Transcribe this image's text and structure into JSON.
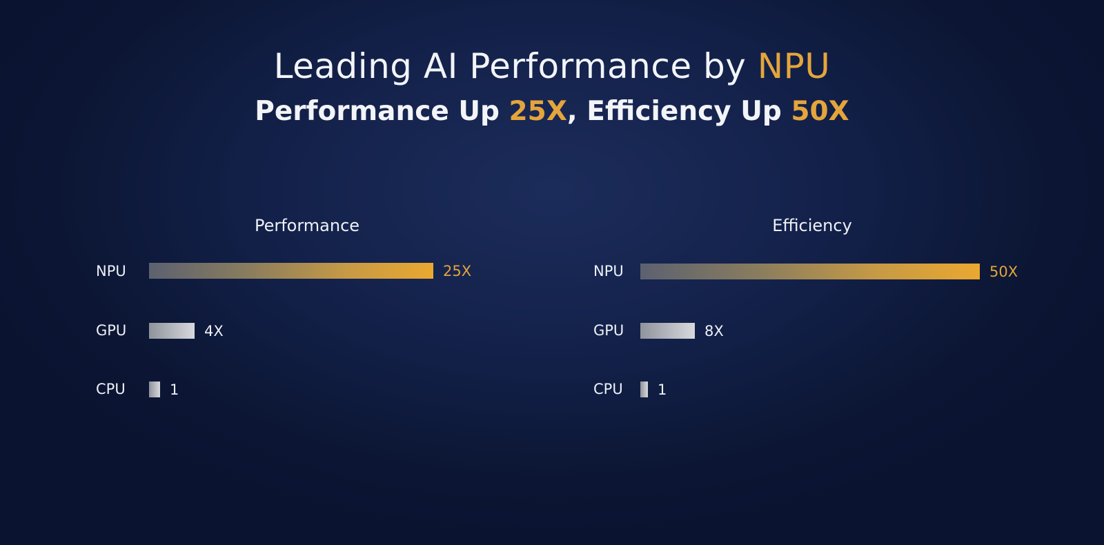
{
  "header": {
    "title_prefix": "Leading AI Performance by ",
    "title_accent": "NPU",
    "subtitle_part1": "Performance Up ",
    "subtitle_accent1": "25X",
    "subtitle_part2": ", Efficiency Up ",
    "subtitle_accent2": "50X"
  },
  "colors": {
    "accent": "#e4a53c",
    "background": "#13214a",
    "text": "#eef1f6"
  },
  "chart_data": [
    {
      "type": "bar",
      "orientation": "horizontal",
      "title": "Performance",
      "categories": [
        "NPU",
        "GPU",
        "CPU"
      ],
      "values": [
        25,
        4,
        1
      ],
      "value_labels": [
        "25X",
        "4X",
        "1"
      ],
      "xlim": [
        0,
        25
      ]
    },
    {
      "type": "bar",
      "orientation": "horizontal",
      "title": "Efficiency",
      "categories": [
        "NPU",
        "GPU",
        "CPU"
      ],
      "values": [
        50,
        8,
        1
      ],
      "value_labels": [
        "50X",
        "8X",
        "1"
      ],
      "xlim": [
        0,
        50
      ]
    }
  ]
}
